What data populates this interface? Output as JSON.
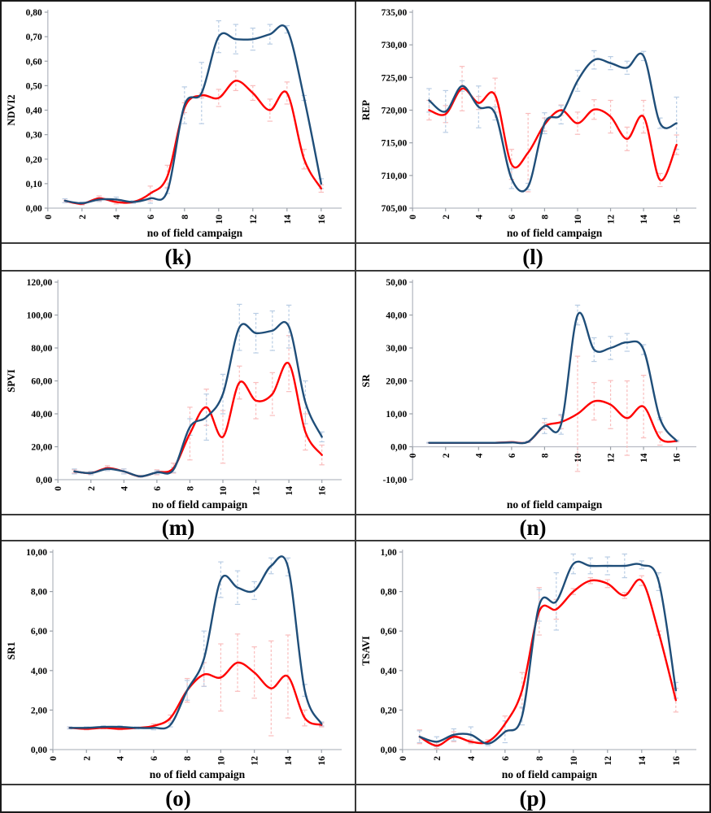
{
  "colors": {
    "line_blue": "#1F4E79",
    "line_red": "#FF0000",
    "err_blue": "#B9CDE4",
    "err_red": "#F9BDBD",
    "axis_line": "#B8BCC4",
    "tick_mark": "#9AA0A8",
    "border": "#1A1A1A",
    "text": "#000000"
  },
  "chart_data": [
    {
      "type": "line",
      "panel_label": "(k)",
      "ylabel": "NDVI2",
      "xlabel": "no of field campaign",
      "xlim": [
        0,
        17.2
      ],
      "xticks": [
        0,
        2,
        4,
        6,
        8,
        10,
        12,
        14,
        16
      ],
      "ylim": [
        0,
        0.8
      ],
      "ytick_step": 0.1,
      "y_decimals": 2,
      "x": [
        1,
        2,
        3,
        4,
        5,
        6,
        7,
        8,
        9,
        10,
        11,
        12,
        13,
        14,
        15,
        16
      ],
      "series": [
        {
          "name": "red",
          "values": [
            0.03,
            0.018,
            0.04,
            0.025,
            0.025,
            0.06,
            0.13,
            0.41,
            0.46,
            0.45,
            0.52,
            0.47,
            0.4,
            0.47,
            0.2,
            0.08
          ],
          "err": [
            0.008,
            0.005,
            0.01,
            0.008,
            0.005,
            0.03,
            0.045,
            0.02,
            0.01,
            0.035,
            0.04,
            0.03,
            0.045,
            0.045,
            0.04,
            0.015
          ]
        },
        {
          "name": "blue",
          "values": [
            0.03,
            0.02,
            0.035,
            0.035,
            0.025,
            0.04,
            0.07,
            0.42,
            0.47,
            0.7,
            0.69,
            0.69,
            0.71,
            0.73,
            0.45,
            0.1
          ],
          "err": [
            0.008,
            0.005,
            0.008,
            0.01,
            0.005,
            0.02,
            0.01,
            0.075,
            0.125,
            0.065,
            0.06,
            0.045,
            0.04,
            0.015,
            0.01,
            0.02
          ]
        }
      ]
    },
    {
      "type": "line",
      "panel_label": "(l)",
      "ylabel": "REP",
      "xlabel": "no of field campaign",
      "xlim": [
        0,
        17.2
      ],
      "xticks": [
        0,
        2,
        4,
        6,
        8,
        10,
        12,
        14,
        16
      ],
      "ylim": [
        705,
        735
      ],
      "ytick_step": 5,
      "y_decimals": 2,
      "x": [
        1,
        2,
        3,
        4,
        5,
        6,
        7,
        8,
        9,
        10,
        11,
        12,
        13,
        14,
        15,
        16
      ],
      "series": [
        {
          "name": "red",
          "values": [
            720.0,
            719.4,
            723.3,
            721.1,
            722.3,
            711.7,
            713.5,
            717.8,
            720.0,
            718.0,
            720.1,
            719.0,
            715.6,
            719.0,
            709.3,
            714.7
          ],
          "err": [
            1.5,
            1.3,
            3.4,
            1.0,
            2.6,
            2.3,
            6.0,
            1.0,
            0.8,
            1.7,
            1.5,
            2.5,
            1.8,
            2.5,
            1.0,
            1.5
          ]
        },
        {
          "name": "blue",
          "values": [
            721.5,
            719.8,
            723.7,
            720.5,
            719.5,
            709.5,
            708.3,
            718.0,
            719.3,
            724.5,
            727.7,
            727.2,
            726.5,
            728.3,
            718.0,
            718.0
          ],
          "err": [
            1.8,
            3.2,
            0.8,
            3.2,
            1.0,
            1.5,
            0.5,
            1.6,
            1.4,
            1.6,
            1.4,
            1.0,
            1.0,
            0.7,
            0.8,
            4.0
          ]
        }
      ]
    },
    {
      "type": "line",
      "panel_label": "(m)",
      "ylabel": "SPVI",
      "xlabel": "no of field campaign",
      "xlim": [
        0,
        17.2
      ],
      "xticks": [
        0,
        2,
        4,
        6,
        8,
        10,
        12,
        14,
        16
      ],
      "ylim": [
        0,
        120
      ],
      "ytick_step": 20,
      "y_decimals": 2,
      "x": [
        1,
        2,
        3,
        4,
        5,
        6,
        7,
        8,
        9,
        10,
        11,
        12,
        13,
        14,
        15,
        16
      ],
      "series": [
        {
          "name": "red",
          "values": [
            5,
            4,
            7,
            5,
            2,
            4.5,
            7,
            28,
            44,
            26,
            59,
            48,
            52,
            70.5,
            29,
            15
          ],
          "err": [
            1,
            1,
            1.5,
            1.5,
            0.5,
            1.5,
            3,
            16,
            11,
            16,
            10,
            11,
            13,
            17,
            11,
            6
          ]
        },
        {
          "name": "blue",
          "values": [
            5,
            4,
            6.5,
            5,
            2,
            4.5,
            6,
            32,
            38,
            52,
            92.5,
            89,
            90.5,
            93,
            47,
            26
          ],
          "err": [
            1.5,
            1,
            1,
            1.5,
            0.5,
            1,
            1.5,
            5,
            14,
            12,
            14,
            12,
            12,
            13,
            13,
            3
          ]
        }
      ]
    },
    {
      "type": "line",
      "panel_label": "(n)",
      "ylabel": "SR",
      "xlabel": "no of field campaign",
      "xlim": [
        0,
        17.2
      ],
      "xticks": [
        0,
        2,
        4,
        6,
        8,
        10,
        12,
        14,
        16
      ],
      "ylim": [
        -10,
        50
      ],
      "ytick_step": 10,
      "y_decimals": 2,
      "x": [
        1,
        2,
        3,
        4,
        5,
        6,
        7,
        8,
        9,
        10,
        11,
        12,
        13,
        14,
        15,
        16
      ],
      "series": [
        {
          "name": "red",
          "values": [
            1.2,
            1.2,
            1.2,
            1.2,
            1.2,
            1.4,
            1.5,
            6.3,
            7.5,
            10,
            13.8,
            12.8,
            8.7,
            12.2,
            2.5,
            1.7
          ],
          "err": [
            0.1,
            0.1,
            0.1,
            0.1,
            0.1,
            0.1,
            0.2,
            1.0,
            2.0,
            17.5,
            5.7,
            7.3,
            11.3,
            9.5,
            2.0,
            0.2
          ]
        },
        {
          "name": "blue",
          "values": [
            1.2,
            1.2,
            1.2,
            1.2,
            1.2,
            1.3,
            1.5,
            6.3,
            6.8,
            40,
            29.5,
            30,
            31.7,
            29.5,
            8.5,
            1.8
          ],
          "err": [
            0.1,
            0.1,
            0.1,
            0.1,
            0.1,
            0.1,
            0.2,
            2.3,
            3.0,
            3.0,
            3.6,
            3.5,
            2.7,
            1.5,
            0.3,
            0.2
          ]
        }
      ]
    },
    {
      "type": "line",
      "panel_label": "(o)",
      "ylabel": "SR1",
      "xlabel": "no of field campaign",
      "xlim": [
        0,
        17.2
      ],
      "xticks": [
        0,
        2,
        4,
        6,
        8,
        10,
        12,
        14,
        16
      ],
      "ylim": [
        0,
        10
      ],
      "ytick_step": 2,
      "y_decimals": 2,
      "x": [
        1,
        2,
        3,
        4,
        5,
        6,
        7,
        8,
        9,
        10,
        11,
        12,
        13,
        14,
        15,
        16
      ],
      "series": [
        {
          "name": "red",
          "values": [
            1.1,
            1.05,
            1.1,
            1.05,
            1.1,
            1.2,
            1.6,
            3.0,
            3.8,
            3.65,
            4.4,
            3.9,
            3.1,
            3.7,
            1.6,
            1.25
          ],
          "err": [
            0.05,
            0.05,
            0.05,
            0.05,
            0.05,
            0.1,
            0.15,
            0.6,
            0.6,
            1.7,
            1.45,
            1.3,
            2.4,
            2.1,
            0.4,
            0.1
          ]
        },
        {
          "name": "blue",
          "values": [
            1.1,
            1.1,
            1.15,
            1.15,
            1.1,
            1.1,
            1.25,
            3.0,
            4.6,
            8.6,
            8.2,
            8.05,
            9.3,
            9.25,
            3.0,
            1.3
          ],
          "err": [
            0.05,
            0.05,
            0.05,
            0.05,
            0.05,
            0.1,
            0.1,
            0.5,
            1.4,
            0.9,
            0.85,
            0.45,
            0.4,
            0.45,
            0.3,
            0.1
          ]
        }
      ]
    },
    {
      "type": "line",
      "panel_label": "(p)",
      "ylabel": "TSAVI",
      "xlabel": "no of field campaign",
      "xlim": [
        0,
        17.2
      ],
      "xticks": [
        0,
        2,
        4,
        6,
        8,
        10,
        12,
        14,
        16
      ],
      "ylim": [
        0,
        1.0
      ],
      "ytick_step": 0.2,
      "y_decimals": 2,
      "x": [
        1,
        2,
        3,
        4,
        5,
        6,
        7,
        8,
        9,
        10,
        11,
        12,
        13,
        14,
        15,
        16
      ],
      "series": [
        {
          "name": "red",
          "values": [
            0.065,
            0.02,
            0.065,
            0.04,
            0.04,
            0.13,
            0.3,
            0.7,
            0.71,
            0.8,
            0.855,
            0.84,
            0.78,
            0.855,
            0.59,
            0.25
          ],
          "err": [
            0.035,
            0.015,
            0.025,
            0.01,
            0.01,
            0.04,
            0.09,
            0.12,
            0.05,
            0.015,
            0.015,
            0.02,
            0.015,
            0.025,
            0.01,
            0.06
          ]
        },
        {
          "name": "blue",
          "values": [
            0.065,
            0.04,
            0.075,
            0.075,
            0.03,
            0.09,
            0.17,
            0.73,
            0.75,
            0.94,
            0.93,
            0.93,
            0.93,
            0.935,
            0.85,
            0.3
          ],
          "err": [
            0.03,
            0.025,
            0.03,
            0.04,
            0.01,
            0.055,
            0.045,
            0.08,
            0.145,
            0.05,
            0.04,
            0.045,
            0.06,
            0.02,
            0.045,
            0.04
          ]
        }
      ]
    }
  ]
}
